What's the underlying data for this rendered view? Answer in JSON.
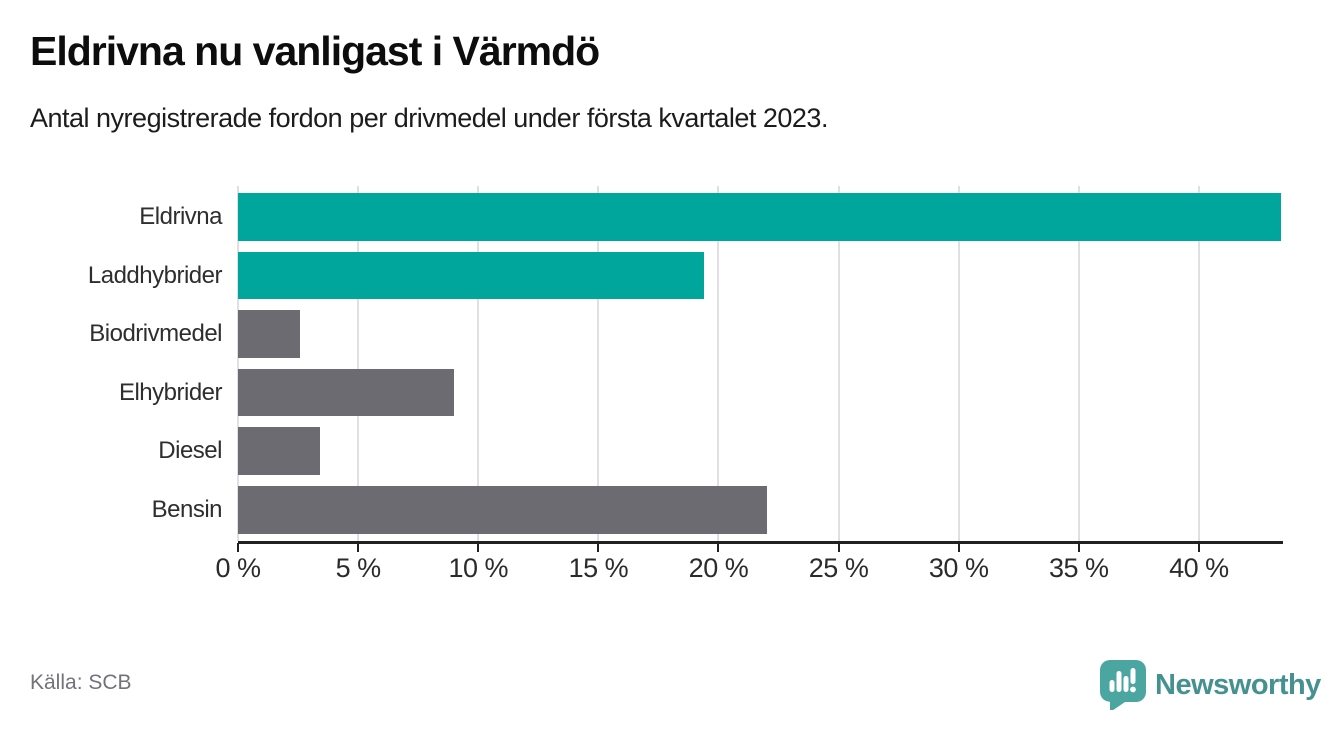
{
  "header": {
    "title": "Eldrivna nu vanligast i Värmdö",
    "subtitle": "Antal nyregistrerade fordon per drivmedel under första kvartalet 2023."
  },
  "chart_data": {
    "type": "bar",
    "orientation": "horizontal",
    "title": "Eldrivna nu vanligast i Värmdö",
    "subtitle": "Antal nyregistrerade fordon per drivmedel under första kvartalet 2023.",
    "categories": [
      "Eldrivna",
      "Laddhybrider",
      "Biodrivmedel",
      "Elhybrider",
      "Diesel",
      "Bensin"
    ],
    "values": [
      43.4,
      19.4,
      2.6,
      9.0,
      3.4,
      22.0
    ],
    "unit": "%",
    "bar_colors": [
      "#00a59b",
      "#00a59b",
      "#6c6b71",
      "#6c6b71",
      "#6c6b71",
      "#6c6b71"
    ],
    "highlight_color": "#00a59b",
    "default_color": "#6c6b71",
    "xlabel": "",
    "ylabel": "",
    "xlim": [
      0,
      43.5
    ],
    "x_ticks": [
      0,
      5,
      10,
      15,
      20,
      25,
      30,
      35,
      40
    ],
    "x_tick_labels": [
      "0 %",
      "5 %",
      "10 %",
      "15 %",
      "20 %",
      "25 %",
      "30 %",
      "35 %",
      "40 %"
    ],
    "grid": "vertical-only",
    "legend": "none"
  },
  "footer": {
    "source": "Källa: SCB",
    "brand": "Newsworthy",
    "brand_color": "#44918f"
  }
}
